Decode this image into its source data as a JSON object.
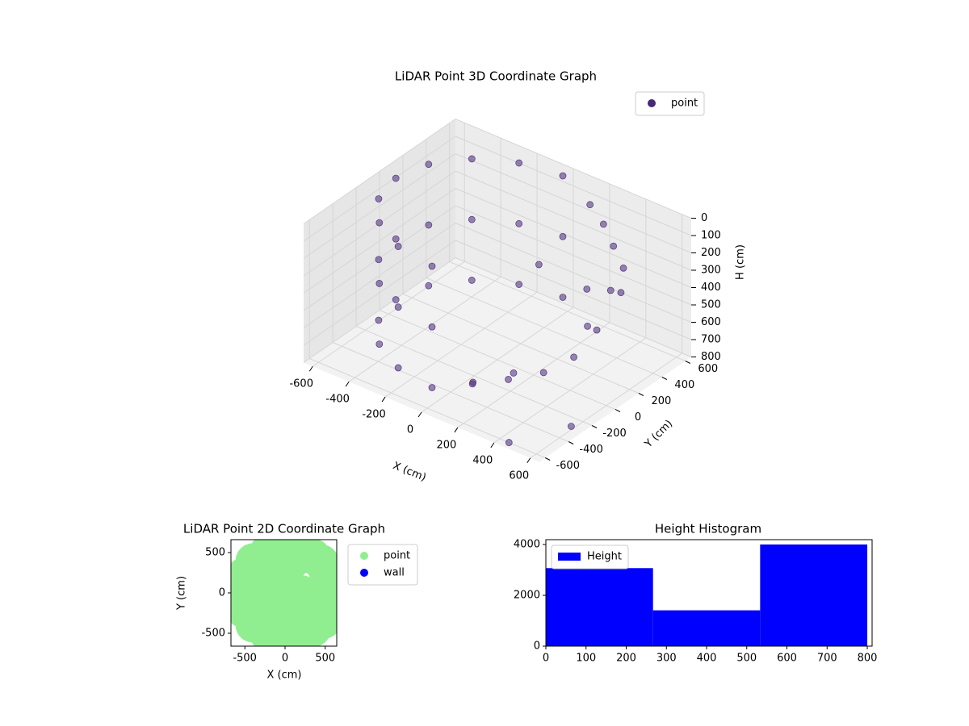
{
  "chart_data": [
    {
      "type": "scatter3d",
      "title": "LiDAR Point 3D Coordinate Graph",
      "x_label": "X (cm)",
      "y_label": "Y (cm)",
      "z_label": "H (cm)",
      "xlim": [
        -650,
        650
      ],
      "ylim": [
        -650,
        650
      ],
      "zlim": [
        800,
        0
      ],
      "xticks": [
        -600,
        -400,
        -200,
        0,
        200,
        400,
        600
      ],
      "yticks": [
        -600,
        -400,
        -200,
        0,
        200,
        400,
        600
      ],
      "zticks": [
        0,
        100,
        200,
        300,
        400,
        500,
        600,
        700,
        800
      ],
      "legend": "upper right",
      "series": [
        {
          "name": "point",
          "color": "#482878",
          "x": [
            0,
            -214,
            -396,
            -517,
            -560,
            -517,
            -396,
            -214,
            0,
            0,
            -214,
            -396,
            -517,
            -560,
            -517,
            -396,
            -214,
            0,
            0,
            -214,
            -396,
            -517,
            -560,
            -517,
            -396,
            -214,
            0,
            150,
            250,
            350,
            450,
            520,
            560,
            580,
            550,
            480,
            350,
            200,
            120,
            300,
            400,
            250,
            100,
            450,
            600
          ],
          "y": [
            560,
            517,
            396,
            214,
            0,
            -214,
            -396,
            -517,
            -560,
            560,
            517,
            396,
            214,
            0,
            -214,
            -396,
            -517,
            -560,
            560,
            517,
            396,
            214,
            0,
            -214,
            -396,
            -517,
            -560,
            560,
            520,
            450,
            380,
            250,
            100,
            -50,
            -200,
            -350,
            -450,
            -520,
            -400,
            300,
            150,
            -250,
            200,
            -600,
            -300
          ],
          "z": [
            0,
            0,
            0,
            0,
            0,
            0,
            0,
            0,
            0,
            350,
            350,
            350,
            350,
            350,
            350,
            350,
            350,
            350,
            700,
            700,
            700,
            700,
            700,
            700,
            700,
            700,
            700,
            100,
            150,
            200,
            250,
            300,
            200,
            350,
            450,
            500,
            550,
            600,
            700,
            400,
            500,
            650,
            300,
            800,
            780
          ]
        }
      ]
    },
    {
      "type": "scatter",
      "title": "LiDAR Point 2D Coordinate Graph",
      "x_label": "X (cm)",
      "y_label": "Y (cm)",
      "xlim": [
        -673,
        643
      ],
      "ylim": [
        -660,
        660
      ],
      "xticks": [
        -500,
        0,
        500
      ],
      "yticks": [
        -500,
        0,
        500
      ],
      "legend": "outside upper right",
      "series": [
        {
          "name": "point",
          "color": "#90ee90",
          "x": [
            0,
            -214,
            -396,
            -517,
            -560,
            -517,
            -396,
            -214,
            0,
            150,
            250,
            350,
            450,
            520,
            560,
            580,
            550,
            480,
            350,
            200,
            -300,
            -200,
            -200,
            0,
            100,
            0,
            200,
            -400,
            -400,
            0,
            100,
            300,
            -100,
            -100
          ],
          "y": [
            560,
            517,
            396,
            214,
            0,
            -214,
            -396,
            -517,
            -560,
            560,
            520,
            450,
            380,
            250,
            100,
            -50,
            -200,
            -350,
            -450,
            -520,
            0,
            300,
            -300,
            0,
            -200,
            300,
            0,
            -200,
            200,
            -400,
            400,
            -100,
            150,
            -150
          ]
        },
        {
          "name": "wall",
          "color": "#0000ff",
          "x": [],
          "y": []
        }
      ]
    },
    {
      "type": "histogram",
      "title": "Height Histogram",
      "bins": [
        0,
        266.7,
        533.3,
        800
      ],
      "xlim": [
        0,
        812
      ],
      "ylim": [
        0,
        4190
      ],
      "xticks": [
        0,
        100,
        200,
        300,
        400,
        500,
        600,
        700,
        800
      ],
      "yticks": [
        0,
        2000,
        4000
      ],
      "legend": "upper left",
      "series": [
        {
          "name": "Height",
          "color": "#0000ff",
          "values": [
            3070,
            1410,
            4000
          ]
        }
      ]
    }
  ]
}
